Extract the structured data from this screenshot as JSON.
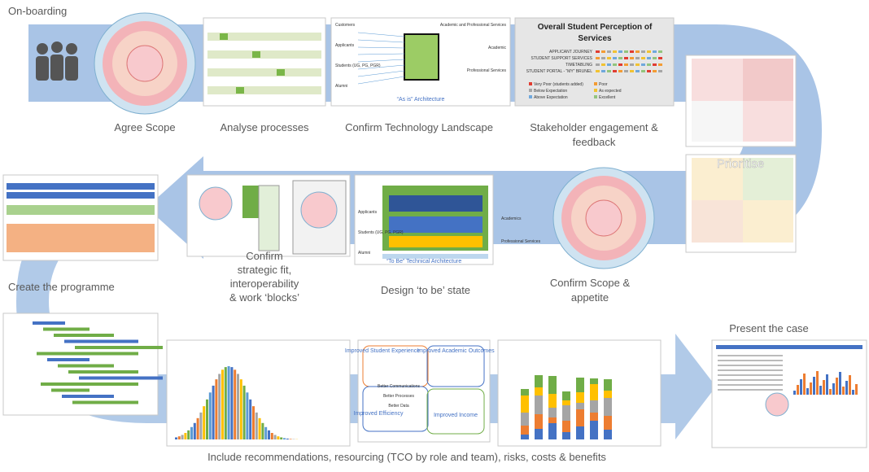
{
  "stages": {
    "onboarding": "On-boarding",
    "agree_scope": "Agree Scope",
    "analyse": "Analyse processes",
    "tech": "Confirm Technology Landscape",
    "stakeholder": [
      "Stakeholder engagement &",
      "feedback"
    ],
    "strategic": [
      "Confirm",
      "strategic fit,",
      "interoperability",
      "& work ‘blocks’"
    ],
    "design": "Design ‘to be’ state",
    "confirm_scope": [
      "Confirm Scope &",
      "appetite"
    ],
    "programme": "Create the programme",
    "present": "Present the case",
    "include": "Include recommendations, resourcing (TCO by role and team), risks, costs & benefits"
  },
  "perception": {
    "title": [
      "Overall Student Perception of",
      "Services"
    ],
    "rows": [
      "APPLICANT JOURNEY",
      "STUDENT SUPPORT SERVICES",
      "TIMETABLING",
      "STUDENT PORTAL - “MY” BRUNEL"
    ],
    "legend": [
      "Very Poor (students added)",
      "Poor",
      "Below Expectation",
      "As expected",
      "Above Expectation",
      "Excellent"
    ]
  },
  "as_is": {
    "caption": "“As is” Architecture",
    "left": [
      "Customers",
      "Applicants",
      "Students (UG, PG, PGR)",
      "Alumni"
    ],
    "right": [
      "Academic and Professional Services",
      "Academic",
      "Professional Services"
    ]
  },
  "prioritise": "Prioritise",
  "to_be": {
    "caption": "“To Be” Technical Architecture",
    "left": [
      "Applicants",
      "Students (UG, PG, PGR)",
      "Alumni"
    ],
    "right": [
      "Academics",
      "Professional Services"
    ]
  },
  "benefits": {
    "outcomes": [
      "Improved Student Experience",
      "Improved Academic Outcomes",
      "Improved Efficiency",
      "Improved Income"
    ],
    "drivers": [
      "Better Communications",
      "Better Processes",
      "Better Data"
    ]
  }
}
